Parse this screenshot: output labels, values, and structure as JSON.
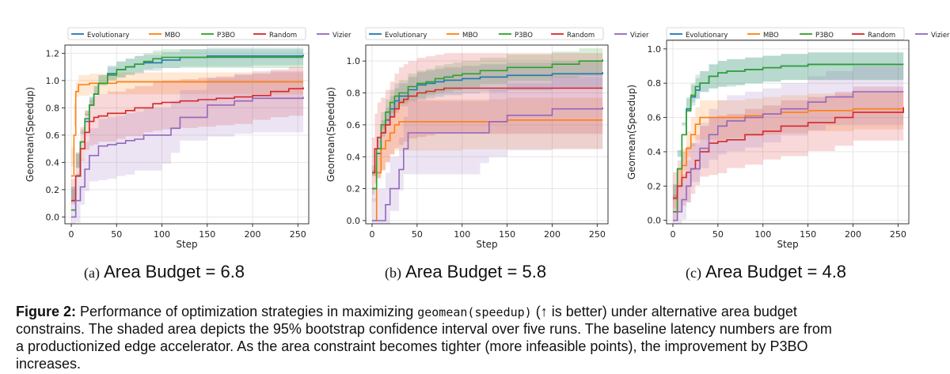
{
  "legend_items": [
    "Evolutionary",
    "MBO",
    "P3BO",
    "Random",
    "Vizier"
  ],
  "colors": {
    "Evolutionary": "#1f77b4",
    "MBO": "#ff7f0e",
    "P3BO": "#2ca02c",
    "Random": "#d62728",
    "Vizier": "#9467bd"
  },
  "subcaptions": [
    {
      "label": "(a)",
      "title": "Area Budget = 6.8"
    },
    {
      "label": "(b)",
      "title": "Area Budget = 5.8"
    },
    {
      "label": "(c)",
      "title": "Area Budget = 4.8"
    }
  ],
  "caption": {
    "figure_label": "Figure 2:",
    "line1_a": "Performance of optimization strategies in maximizing",
    "line1_code": "geomean(speedup)",
    "line1_b": "(↑ is better) under alternative area budget",
    "line2": "constrains. The shaded area depicts the 95% bootstrap confidence interval over five runs. The baseline latency numbers are from",
    "line3": "a productionized edge accelerator.  As the area constraint becomes tighter (more infeasible points), the improvement by P3BO",
    "line4": "increases."
  },
  "chart_data": [
    {
      "type": "line",
      "xlabel": "Step",
      "ylabel": "Geomean(Speedup)",
      "xlim": [
        -7,
        262
      ],
      "ylim": [
        -0.05,
        1.26
      ],
      "xticks": [
        0,
        50,
        100,
        150,
        200,
        250
      ],
      "yticks": [
        0.0,
        0.2,
        0.4,
        0.6,
        0.8,
        1.0,
        1.2
      ],
      "ytick_labels": [
        "0.0",
        "0.2",
        "0.4",
        "0.6",
        "0.8",
        "1.0",
        "1.2"
      ],
      "grid": true,
      "legend": "top",
      "series": [
        {
          "name": "Evolutionary",
          "x": [
            0,
            5,
            10,
            15,
            20,
            25,
            30,
            40,
            50,
            60,
            70,
            80,
            100,
            120,
            150,
            200,
            256
          ],
          "y": [
            0.05,
            0.3,
            0.55,
            0.7,
            0.82,
            0.9,
            0.98,
            1.05,
            1.08,
            1.1,
            1.12,
            1.13,
            1.15,
            1.17,
            1.18,
            1.18,
            1.19
          ],
          "band": 0.06
        },
        {
          "name": "MBO",
          "x": [
            0,
            3,
            5,
            8,
            20,
            50,
            100,
            150,
            200,
            256
          ],
          "y": [
            0.3,
            0.6,
            0.92,
            0.97,
            0.98,
            0.99,
            0.99,
            0.99,
            0.99,
            0.99
          ],
          "band": 0.07
        },
        {
          "name": "P3BO",
          "x": [
            0,
            5,
            10,
            15,
            20,
            25,
            30,
            40,
            50,
            60,
            70,
            80,
            90,
            100,
            110,
            150,
            200,
            256
          ],
          "y": [
            0.05,
            0.3,
            0.55,
            0.72,
            0.82,
            0.9,
            0.98,
            1.04,
            1.08,
            1.1,
            1.12,
            1.14,
            1.16,
            1.17,
            1.17,
            1.17,
            1.17,
            1.17
          ],
          "band": 0.06
        },
        {
          "name": "Random",
          "x": [
            0,
            5,
            10,
            15,
            20,
            25,
            30,
            40,
            50,
            60,
            70,
            80,
            90,
            100,
            120,
            140,
            160,
            180,
            200,
            220,
            240,
            256
          ],
          "y": [
            0.12,
            0.3,
            0.5,
            0.62,
            0.7,
            0.73,
            0.74,
            0.76,
            0.76,
            0.78,
            0.8,
            0.8,
            0.83,
            0.84,
            0.85,
            0.86,
            0.87,
            0.88,
            0.89,
            0.92,
            0.94,
            0.95
          ],
          "band": 0.16
        },
        {
          "name": "Vizier",
          "x": [
            0,
            5,
            10,
            15,
            20,
            30,
            40,
            50,
            60,
            70,
            80,
            100,
            110,
            120,
            150,
            180,
            200,
            256
          ],
          "y": [
            0.0,
            0.12,
            0.22,
            0.35,
            0.45,
            0.52,
            0.53,
            0.54,
            0.56,
            0.57,
            0.6,
            0.6,
            0.65,
            0.73,
            0.82,
            0.85,
            0.87,
            0.88
          ],
          "band": 0.2
        }
      ]
    },
    {
      "type": "line",
      "xlabel": "Step",
      "ylabel": "Geomean(Speedup)",
      "xlim": [
        -7,
        262
      ],
      "ylim": [
        -0.02,
        1.1
      ],
      "xticks": [
        0,
        50,
        100,
        150,
        200,
        250
      ],
      "yticks": [
        0.0,
        0.2,
        0.4,
        0.6,
        0.8,
        1.0
      ],
      "ytick_labels": [
        "0.0",
        "0.2",
        "0.4",
        "0.6",
        "0.8",
        "1.0"
      ],
      "grid": true,
      "legend": "top",
      "series": [
        {
          "name": "Evolutionary",
          "x": [
            0,
            5,
            10,
            15,
            20,
            25,
            30,
            40,
            50,
            60,
            70,
            80,
            100,
            120,
            150,
            200,
            256
          ],
          "y": [
            0.2,
            0.42,
            0.55,
            0.63,
            0.7,
            0.75,
            0.78,
            0.82,
            0.85,
            0.86,
            0.87,
            0.88,
            0.89,
            0.9,
            0.91,
            0.92,
            0.93
          ],
          "band": 0.08
        },
        {
          "name": "MBO",
          "x": [
            0,
            5,
            10,
            15,
            20,
            25,
            30,
            35,
            50,
            100,
            150,
            200,
            256
          ],
          "y": [
            0.0,
            0.3,
            0.45,
            0.5,
            0.55,
            0.6,
            0.62,
            0.62,
            0.62,
            0.62,
            0.63,
            0.63,
            0.63
          ],
          "band": 0.14
        },
        {
          "name": "P3BO",
          "x": [
            0,
            5,
            10,
            15,
            20,
            25,
            30,
            40,
            50,
            60,
            70,
            80,
            90,
            100,
            120,
            150,
            200,
            230,
            256
          ],
          "y": [
            0.2,
            0.45,
            0.6,
            0.68,
            0.74,
            0.78,
            0.8,
            0.84,
            0.86,
            0.87,
            0.89,
            0.9,
            0.91,
            0.92,
            0.94,
            0.96,
            0.98,
            1.0,
            1.01
          ],
          "band": 0.08
        },
        {
          "name": "Random",
          "x": [
            0,
            3,
            6,
            10,
            15,
            20,
            25,
            30,
            35,
            40,
            50,
            60,
            70,
            80,
            100,
            150,
            200,
            256
          ],
          "y": [
            0.3,
            0.45,
            0.52,
            0.55,
            0.6,
            0.65,
            0.7,
            0.74,
            0.76,
            0.78,
            0.8,
            0.81,
            0.82,
            0.83,
            0.83,
            0.83,
            0.83,
            0.83
          ],
          "band": 0.22
        },
        {
          "name": "Vizier",
          "x": [
            0,
            5,
            10,
            15,
            20,
            30,
            35,
            40,
            50,
            60,
            80,
            100,
            120,
            130,
            150,
            200,
            256
          ],
          "y": [
            0.0,
            0.0,
            0.0,
            0.1,
            0.2,
            0.32,
            0.45,
            0.55,
            0.55,
            0.55,
            0.55,
            0.55,
            0.55,
            0.62,
            0.66,
            0.7,
            0.71
          ],
          "band": 0.2
        }
      ]
    },
    {
      "type": "line",
      "xlabel": "Step",
      "ylabel": "Geomean(Speedup)",
      "xlim": [
        -7,
        262
      ],
      "ylim": [
        -0.02,
        1.05
      ],
      "xticks": [
        0,
        50,
        100,
        150,
        200,
        250
      ],
      "yticks": [
        0.0,
        0.2,
        0.4,
        0.6,
        0.8,
        1.0
      ],
      "ytick_labels": [
        "0.0",
        "0.2",
        "0.4",
        "0.6",
        "0.8",
        "1.0"
      ],
      "grid": true,
      "legend": "top",
      "series": [
        {
          "name": "Evolutionary",
          "x": [
            0,
            5,
            10,
            15,
            20,
            25,
            30,
            40,
            50,
            60,
            80,
            100,
            120,
            150,
            256
          ],
          "y": [
            0.05,
            0.3,
            0.5,
            0.65,
            0.72,
            0.76,
            0.8,
            0.84,
            0.86,
            0.87,
            0.88,
            0.89,
            0.9,
            0.91,
            0.91
          ],
          "band": 0.07
        },
        {
          "name": "MBO",
          "x": [
            0,
            5,
            10,
            15,
            20,
            25,
            30,
            40,
            50,
            60,
            80,
            100,
            120,
            150,
            200,
            256
          ],
          "y": [
            0.05,
            0.2,
            0.32,
            0.42,
            0.5,
            0.56,
            0.6,
            0.6,
            0.6,
            0.6,
            0.61,
            0.62,
            0.63,
            0.64,
            0.65,
            0.66
          ],
          "band": 0.1
        },
        {
          "name": "P3BO",
          "x": [
            0,
            5,
            10,
            15,
            20,
            25,
            30,
            40,
            50,
            60,
            70,
            80,
            100,
            120,
            150,
            200,
            256
          ],
          "y": [
            0.05,
            0.3,
            0.5,
            0.64,
            0.73,
            0.78,
            0.8,
            0.84,
            0.86,
            0.87,
            0.87,
            0.88,
            0.89,
            0.9,
            0.91,
            0.91,
            0.91
          ],
          "band": 0.07
        },
        {
          "name": "Random",
          "x": [
            0,
            5,
            10,
            15,
            20,
            25,
            30,
            40,
            50,
            60,
            80,
            100,
            120,
            150,
            180,
            200,
            256
          ],
          "y": [
            0.13,
            0.2,
            0.25,
            0.28,
            0.3,
            0.35,
            0.4,
            0.45,
            0.46,
            0.47,
            0.5,
            0.52,
            0.55,
            0.57,
            0.6,
            0.63,
            0.66
          ],
          "band": 0.15
        },
        {
          "name": "Vizier",
          "x": [
            0,
            5,
            10,
            15,
            20,
            30,
            40,
            50,
            60,
            80,
            100,
            120,
            150,
            170,
            200,
            256
          ],
          "y": [
            0.0,
            0.05,
            0.12,
            0.2,
            0.3,
            0.42,
            0.5,
            0.55,
            0.58,
            0.6,
            0.62,
            0.65,
            0.69,
            0.72,
            0.75,
            0.75
          ],
          "band": 0.15
        }
      ]
    }
  ]
}
